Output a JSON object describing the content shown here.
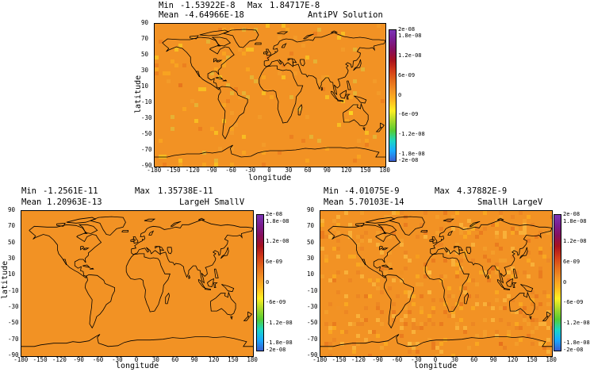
{
  "colors": {
    "field": "#f29224",
    "colorbar": [
      "#3a5fd0",
      "#19a9ff",
      "#1ad6c4",
      "#55cc33",
      "#a8d92a",
      "#ffef22",
      "#ffb81f",
      "#f29224",
      "#e46a1a",
      "#d23a18",
      "#a8121e",
      "#860f5c",
      "#7a1d8f",
      "#7b35b5"
    ]
  },
  "panels": [
    {
      "id": "top",
      "min_label": "Min",
      "min_value": "-1.53922E-8",
      "max_label": "Max",
      "max_value": "1.84717E-8",
      "mean_label": "Mean",
      "mean_value": "-4.64966E-18",
      "title": "AntiPV Solution",
      "xlabel": "longitude",
      "ylabel": "latitude",
      "xticks": [
        "-180",
        "-150",
        "-120",
        "-90",
        "-60",
        "-30",
        "0",
        "30",
        "60",
        "90",
        "120",
        "150",
        "180"
      ],
      "yticks": [
        "90",
        "70",
        "50",
        "30",
        "10",
        "-10",
        "-30",
        "-50",
        "-70",
        "-90"
      ],
      "cbar_ticks": [
        "2e-08",
        "1.8e-08",
        "1.2e-08",
        "6e-09",
        "0",
        "-6e-09",
        "-1.2e-08",
        "-1.8e-08",
        "-2e-08"
      ],
      "noise": "medium"
    },
    {
      "id": "bottom-left",
      "min_label": "Min",
      "min_value": "-1.2561E-11",
      "max_label": "Max",
      "max_value": "1.35738E-11",
      "mean_label": "Mean",
      "mean_value": "1.20963E-13",
      "title": "LargeH SmallV",
      "xlabel": "longitude",
      "ylabel": "latitude",
      "xticks": [
        "-180",
        "-150",
        "-120",
        "-90",
        "-60",
        "-30",
        "0",
        "30",
        "60",
        "90",
        "120",
        "150",
        "180"
      ],
      "yticks": [
        "90",
        "70",
        "50",
        "30",
        "10",
        "-10",
        "-30",
        "-50",
        "-70",
        "-90"
      ],
      "cbar_ticks": [
        "2e-08",
        "1.8e-08",
        "1.2e-08",
        "6e-09",
        "0",
        "-6e-09",
        "-1.2e-08",
        "-1.8e-08",
        "-2e-08"
      ],
      "noise": "none"
    },
    {
      "id": "bottom-right",
      "min_label": "Min",
      "min_value": "-4.01075E-9",
      "max_label": "Max",
      "max_value": "4.37882E-9",
      "mean_label": "Mean",
      "mean_value": "5.70103E-14",
      "title": "SmallH LargeV",
      "xlabel": "longitude",
      "ylabel": "",
      "xticks": [
        "-180",
        "-150",
        "-120",
        "-90",
        "-60",
        "-30",
        "0",
        "30",
        "60",
        "90",
        "120",
        "150",
        "180"
      ],
      "yticks": [
        "90",
        "70",
        "50",
        "30",
        "10",
        "-10",
        "-30",
        "-50",
        "-70",
        "-90"
      ],
      "cbar_ticks": [
        "2e-08",
        "1.8e-08",
        "1.2e-08",
        "6e-09",
        "0",
        "-6e-09",
        "-1.2e-08",
        "-1.8e-08",
        "-2e-08"
      ],
      "noise": "strong"
    }
  ]
}
